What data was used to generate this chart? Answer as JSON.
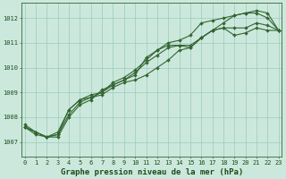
{
  "bg_color": "#cce8dc",
  "grid_color": "#99ccbb",
  "line_color": "#336633",
  "marker_color": "#336633",
  "xlabel": "Graphe pression niveau de la mer (hPa)",
  "xlabel_fontsize": 6.5,
  "ylim": [
    1006.4,
    1012.6
  ],
  "xlim": [
    -0.3,
    23.3
  ],
  "xticks": [
    0,
    1,
    2,
    3,
    4,
    5,
    6,
    7,
    8,
    9,
    10,
    11,
    12,
    13,
    14,
    15,
    16,
    17,
    18,
    19,
    20,
    21,
    22,
    23
  ],
  "yticks": [
    1007,
    1008,
    1009,
    1010,
    1011,
    1012
  ],
  "series": [
    [
      1007.6,
      1007.3,
      1007.2,
      1007.2,
      1008.0,
      1008.5,
      1008.7,
      1009.1,
      1009.3,
      1009.5,
      1009.7,
      1010.4,
      1010.7,
      1010.9,
      1010.9,
      1010.8,
      1011.2,
      1011.5,
      1011.6,
      1011.3,
      1011.4,
      1011.6,
      1011.5,
      1011.5
    ],
    [
      1007.6,
      1007.4,
      1007.2,
      1007.3,
      1008.1,
      1008.6,
      1008.8,
      1009.0,
      1009.3,
      1009.5,
      1009.8,
      1010.2,
      1010.5,
      1010.8,
      1010.9,
      1010.9,
      1011.2,
      1011.5,
      1011.6,
      1011.6,
      1011.6,
      1011.8,
      1011.7,
      1011.5
    ],
    [
      1007.6,
      1007.4,
      1007.2,
      1007.4,
      1008.3,
      1008.7,
      1008.9,
      1009.0,
      1009.4,
      1009.6,
      1009.9,
      1010.3,
      1010.7,
      1011.0,
      1011.1,
      1011.3,
      1011.8,
      1011.9,
      1012.0,
      1012.1,
      1012.2,
      1012.2,
      1012.0,
      1011.5
    ],
    [
      1007.7,
      1007.4,
      1007.2,
      1007.3,
      1008.3,
      1008.7,
      1008.8,
      1008.9,
      1009.2,
      1009.4,
      1009.5,
      1009.7,
      1010.0,
      1010.3,
      1010.7,
      1010.8,
      1011.2,
      1011.5,
      1011.8,
      1012.1,
      1012.2,
      1012.3,
      1012.2,
      1011.5
    ]
  ],
  "marker_size": 2.0,
  "linewidth": 0.8,
  "tick_fontsize": 5.0,
  "tick_color": "#1a4d1a",
  "axis_color": "#336633",
  "label_color": "#1a4d1a"
}
